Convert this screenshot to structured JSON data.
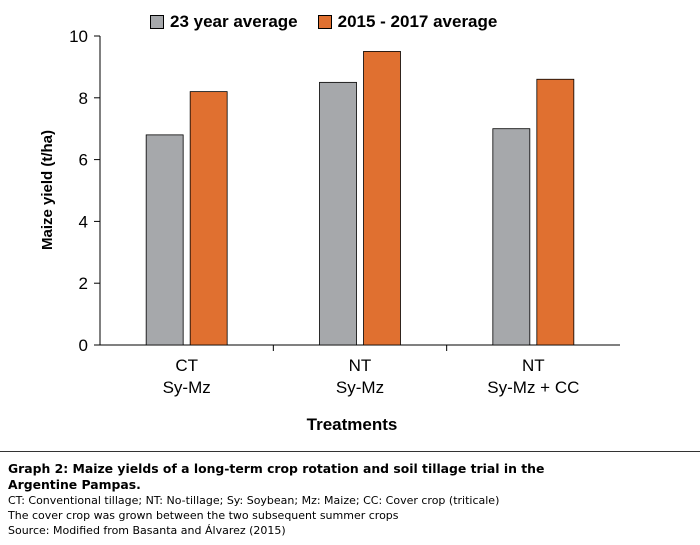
{
  "chart_data": {
    "type": "bar",
    "categories": [
      [
        "CT",
        "Sy-Mz"
      ],
      [
        "NT",
        "Sy-Mz"
      ],
      [
        "NT",
        "Sy-Mz + CC"
      ]
    ],
    "series": [
      {
        "name": "23 year average",
        "color": "#A6A8AB",
        "values": [
          6.8,
          8.5,
          7.0
        ]
      },
      {
        "name": "2015 - 2017 average",
        "color": "#E07030",
        "values": [
          8.2,
          9.5,
          8.6
        ]
      }
    ],
    "xlabel": "Treatments",
    "ylabel": "Maize yield (t/ha)",
    "ylim": [
      0,
      10
    ],
    "yticks": [
      "0",
      "2",
      "4",
      "6",
      "8",
      "10"
    ],
    "grid": false,
    "legend_position": "top"
  },
  "caption": {
    "title_line1": "Graph 2: Maize yields of a long-term crop rotation and soil tillage trial in the",
    "title_line2": "Argentine Pampas.",
    "abbreviations": "CT: Conventional tillage; NT: No-tillage; Sy: Soybean; Mz: Maize; CC: Cover crop (triticale)",
    "note": "The cover crop was grown between the two subsequent summer crops",
    "source": "Source: Modified from Basanta and Álvarez (2015)"
  }
}
